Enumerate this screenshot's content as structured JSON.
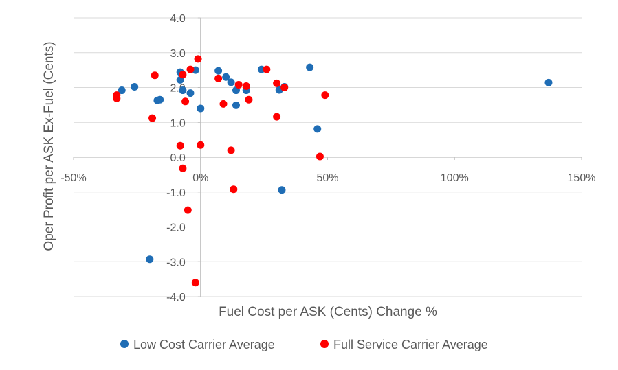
{
  "chart_data": {
    "type": "scatter",
    "title": "",
    "xlabel": "Fuel Cost per ASK (Cents) Change %",
    "ylabel": "Oper Profit per ASK Ex-Fuel (Cents)",
    "xlim": [
      -50,
      150
    ],
    "ylim": [
      -4.0,
      4.0
    ],
    "x_ticks": [
      -50,
      0,
      50,
      100,
      150
    ],
    "x_tick_labels": [
      "-50%",
      "0%",
      "50%",
      "100%",
      "150%"
    ],
    "y_ticks": [
      4,
      3,
      2,
      1,
      0,
      -1,
      -2,
      -3,
      -4
    ],
    "y_tick_labels": [
      "4.0",
      "3.0",
      "2.0",
      "1.0",
      "0.0",
      "-1.0",
      "-2.0",
      "-3.0",
      "-4.0"
    ],
    "grid": "horizontal",
    "legend_position": "bottom",
    "series": [
      {
        "name": "Low Cost Carrier Average",
        "color": "#1f6db5",
        "points": [
          [
            -31,
            1.92
          ],
          [
            -26,
            2.02
          ],
          [
            -17,
            1.63
          ],
          [
            -16,
            1.65
          ],
          [
            -8,
            2.44
          ],
          [
            -8,
            2.22
          ],
          [
            -7,
            1.92
          ],
          [
            -4,
            1.84
          ],
          [
            -2,
            2.5
          ],
          [
            0,
            1.4
          ],
          [
            7,
            2.48
          ],
          [
            10,
            2.3
          ],
          [
            12,
            2.15
          ],
          [
            14,
            1.92
          ],
          [
            18,
            1.92
          ],
          [
            14,
            1.49
          ],
          [
            24,
            2.52
          ],
          [
            31,
            1.93
          ],
          [
            33,
            2.02
          ],
          [
            43,
            2.58
          ],
          [
            46,
            0.81
          ],
          [
            32,
            -0.94
          ],
          [
            -20,
            -2.93
          ],
          [
            137,
            2.14
          ]
        ]
      },
      {
        "name": "Full Service Carrier Average",
        "color": "#ff0000",
        "points": [
          [
            -33,
            1.78
          ],
          [
            -33,
            1.69
          ],
          [
            -18,
            2.35
          ],
          [
            -19,
            1.12
          ],
          [
            -8,
            0.33
          ],
          [
            -7,
            2.37
          ],
          [
            -6,
            1.6
          ],
          [
            -4,
            2.52
          ],
          [
            -1,
            2.82
          ],
          [
            7,
            2.26
          ],
          [
            9,
            1.53
          ],
          [
            15,
            2.08
          ],
          [
            18,
            2.04
          ],
          [
            19,
            1.65
          ],
          [
            26,
            2.52
          ],
          [
            30,
            2.12
          ],
          [
            33,
            2.0
          ],
          [
            30,
            1.16
          ],
          [
            49,
            1.78
          ],
          [
            0,
            0.35
          ],
          [
            12,
            0.2
          ],
          [
            -7,
            -0.32
          ],
          [
            47,
            0.02
          ],
          [
            13,
            -0.92
          ],
          [
            -5,
            -1.52
          ],
          [
            -2,
            -3.6
          ]
        ]
      }
    ]
  }
}
